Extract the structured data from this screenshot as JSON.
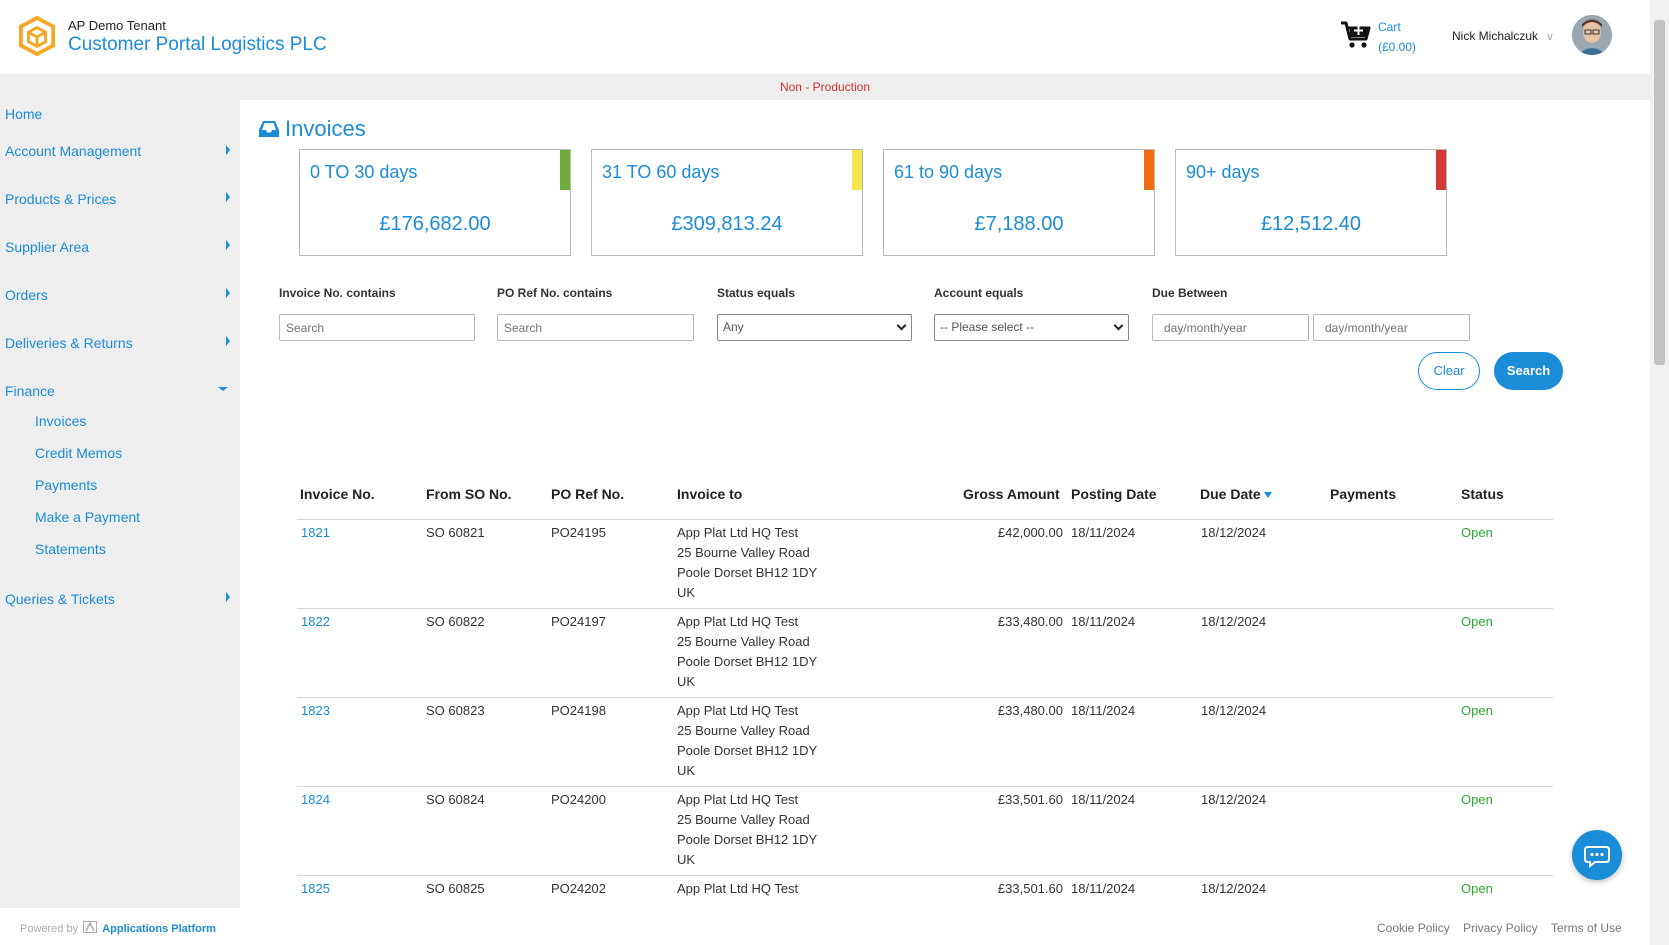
{
  "header": {
    "tenant": "AP Demo Tenant",
    "portal_title": "Customer Portal Logistics PLC",
    "cart_label": "Cart",
    "cart_amount": "(£0.00)",
    "user_name": "Nick Michalczuk"
  },
  "environment_banner": "Non - Production",
  "sidebar": {
    "items": [
      {
        "label": "Home"
      },
      {
        "label": "Account Management"
      },
      {
        "label": "Products & Prices"
      },
      {
        "label": "Supplier Area"
      },
      {
        "label": "Orders"
      },
      {
        "label": "Deliveries & Returns"
      },
      {
        "label": "Finance"
      },
      {
        "label": "Queries & Tickets"
      }
    ],
    "finance_subitems": [
      {
        "label": "Invoices"
      },
      {
        "label": "Credit Memos"
      },
      {
        "label": "Payments"
      },
      {
        "label": "Make a Payment"
      },
      {
        "label": "Statements"
      }
    ]
  },
  "page": {
    "title": "Invoices"
  },
  "aging_tiles": [
    {
      "label": "0 TO 30 days",
      "amount": "£176,682.00",
      "color": "#6aab3c"
    },
    {
      "label": "31 TO 60 days",
      "amount": "£309,813.24",
      "color": "#f5e44a"
    },
    {
      "label": "61 to 90 days",
      "amount": "£7,188.00",
      "color": "#f06a10"
    },
    {
      "label": "90+ days",
      "amount": "£12,512.40",
      "color": "#d23a3a"
    }
  ],
  "filters": {
    "invoice_no_label": "Invoice No. contains",
    "invoice_no_placeholder": "Search",
    "po_ref_label": "PO Ref No. contains",
    "po_ref_placeholder": "Search",
    "status_label": "Status equals",
    "status_value": "Any",
    "account_label": "Account equals",
    "account_value": "-- Please select --",
    "due_label": "Due Between",
    "due_from_placeholder": "day/month/year",
    "due_to_placeholder": "day/month/year",
    "clear_label": "Clear",
    "search_label": "Search"
  },
  "table": {
    "columns": [
      "Invoice No.",
      "From SO No.",
      "PO Ref No.",
      "Invoice to",
      "Gross Amount",
      "Posting Date",
      "Due Date",
      "Payments",
      "Status"
    ],
    "rows": [
      {
        "invoice_no": "1821",
        "so_no": "SO 60821",
        "po_ref": "PO24195",
        "addr1": "App Plat Ltd HQ Test",
        "addr2": "25 Bourne Valley Road",
        "addr3": "Poole Dorset BH12 1DY",
        "addr4": "UK",
        "gross": "£42,000.00",
        "posting": "18/11/2024",
        "due": "18/12/2024",
        "payments": "",
        "status": "Open"
      },
      {
        "invoice_no": "1822",
        "so_no": "SO 60822",
        "po_ref": "PO24197",
        "addr1": "App Plat Ltd HQ Test",
        "addr2": "25 Bourne Valley Road",
        "addr3": "Poole Dorset BH12 1DY",
        "addr4": "UK",
        "gross": "£33,480.00",
        "posting": "18/11/2024",
        "due": "18/12/2024",
        "payments": "",
        "status": "Open"
      },
      {
        "invoice_no": "1823",
        "so_no": "SO 60823",
        "po_ref": "PO24198",
        "addr1": "App Plat Ltd HQ Test",
        "addr2": "25 Bourne Valley Road",
        "addr3": "Poole Dorset BH12 1DY",
        "addr4": "UK",
        "gross": "£33,480.00",
        "posting": "18/11/2024",
        "due": "18/12/2024",
        "payments": "",
        "status": "Open"
      },
      {
        "invoice_no": "1824",
        "so_no": "SO 60824",
        "po_ref": "PO24200",
        "addr1": "App Plat Ltd HQ Test",
        "addr2": "25 Bourne Valley Road",
        "addr3": "Poole Dorset BH12 1DY",
        "addr4": "UK",
        "gross": "£33,501.60",
        "posting": "18/11/2024",
        "due": "18/12/2024",
        "payments": "",
        "status": "Open"
      },
      {
        "invoice_no": "1825",
        "so_no": "SO 60825",
        "po_ref": "PO24202",
        "addr1": "App Plat Ltd HQ Test",
        "addr2": "",
        "addr3": "",
        "addr4": "",
        "gross": "£33,501.60",
        "posting": "18/11/2024",
        "due": "18/12/2024",
        "payments": "",
        "status": "Open"
      }
    ]
  },
  "footer": {
    "powered_prefix": "Powered by",
    "powered_brand": "Applications Platform",
    "links": [
      {
        "label": "Cookie Policy"
      },
      {
        "label": "Privacy Policy"
      },
      {
        "label": "Terms of Use"
      }
    ]
  },
  "icons": {
    "logo": "hexagon-cube-icon",
    "cart": "cart-icon",
    "page": "inbox-icon",
    "chat": "chat-bubble-icon"
  },
  "colors": {
    "brand": "#1a8cd8",
    "status_open": "#2aa830",
    "env_banner": "#d03030"
  }
}
